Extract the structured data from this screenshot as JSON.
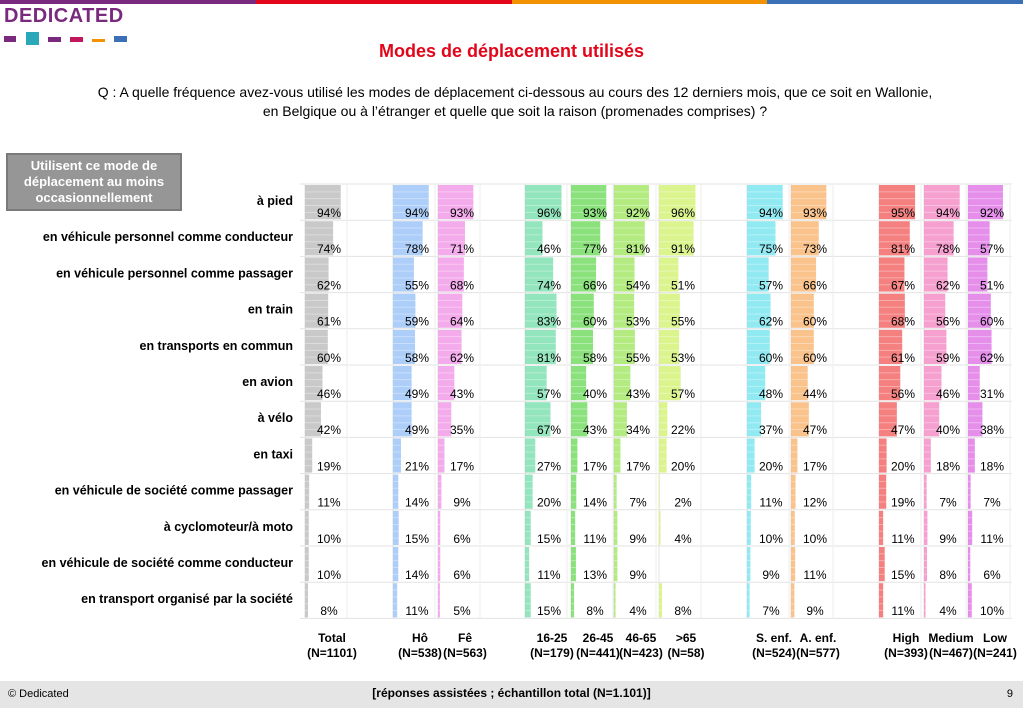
{
  "brand": {
    "logo_text": "DEDICATED"
  },
  "header": {
    "title": "Modes de déplacement utilisés",
    "question_line1": "Q : A quelle fréquence avez-vous utilisé les modes de déplacement ci-dessous au cours des 12 derniers mois, que ce soit en Wallonie,",
    "question_line2": "en Belgique ou à l’étranger et quelle que soit la raison (promenades comprises) ?"
  },
  "legend_box": {
    "text": "Utilisent ce mode de déplacement au moins occasionnellement"
  },
  "colors": {
    "total": "#bfbfbf",
    "gender": "#9fc5f8",
    "gender_f": "#f29ce8",
    "age1": "#7fe0b0",
    "age2": "#77dd66",
    "age3": "#a6e86a",
    "age4": "#d5f27a",
    "kids": "#7ee6f0",
    "nokids": "#f9b878",
    "high": "#f26a6a",
    "medium": "#f48fc8",
    "low": "#e07be8"
  },
  "chart_data": {
    "type": "bar",
    "orientation": "horizontal-small-multiples",
    "xlim": [
      0,
      100
    ],
    "categories": [
      "à pied",
      "en véhicule personnel comme conducteur",
      "en véhicule personnel comme passager",
      "en train",
      "en transports en commun",
      "en avion",
      "à vélo",
      "en taxi",
      "en véhicule de société comme passager",
      "à cyclomoteur/à moto",
      "en véhicule de société comme conducteur",
      "en transport organisé par la société"
    ],
    "series": [
      {
        "name": "Total",
        "n": "(N=1101)",
        "color_key": "total",
        "values": [
          94,
          74,
          62,
          61,
          60,
          46,
          42,
          19,
          11,
          10,
          10,
          8
        ],
        "labels": [
          "94%",
          "74%",
          "62%",
          "61%",
          "60%",
          "46%",
          "42%",
          "19%",
          "11%",
          "10%",
          "10%",
          "8%"
        ]
      },
      {
        "name": "Hô",
        "n": "(N=538)",
        "color_key": "gender",
        "values": [
          94,
          78,
          55,
          59,
          58,
          49,
          49,
          21,
          14,
          15,
          14,
          11
        ],
        "labels": [
          "94%",
          "78%",
          "55%",
          "59%",
          "58%",
          "49%",
          "49%",
          "21%",
          "14%",
          "15%",
          "14%",
          "11%"
        ]
      },
      {
        "name": "Fê",
        "n": "(N=563)",
        "color_key": "gender_f",
        "values": [
          93,
          71,
          68,
          64,
          62,
          43,
          35,
          17,
          9,
          6,
          6,
          5
        ],
        "labels": [
          "93%",
          "71%",
          "68%",
          "64%",
          "62%",
          "43%",
          "35%",
          "17%",
          "9%",
          "6%",
          "6%",
          "5%"
        ]
      },
      {
        "name": "16-25",
        "n": "(N=179)",
        "color_key": "age1",
        "values": [
          96,
          46,
          74,
          83,
          81,
          57,
          67,
          27,
          20,
          15,
          11,
          15
        ],
        "labels": [
          "96%",
          "46%",
          "74%",
          "83%",
          "81%",
          "57%",
          "67%",
          "27%",
          "20%",
          "15%",
          "11%",
          "15%"
        ]
      },
      {
        "name": "26-45",
        "n": "(N=441)",
        "color_key": "age2",
        "values": [
          93,
          77,
          66,
          60,
          58,
          40,
          43,
          17,
          14,
          11,
          13,
          8
        ],
        "labels": [
          "93%",
          "77%",
          "66%",
          "60%",
          "58%",
          "40%",
          "43%",
          "17%",
          "14%",
          "11%",
          "13%",
          "8%"
        ]
      },
      {
        "name": "46-65",
        "n": "(N=423)",
        "color_key": "age3",
        "values": [
          92,
          81,
          54,
          53,
          55,
          43,
          34,
          17,
          7,
          9,
          9,
          4
        ],
        "labels": [
          "92%",
          "81%",
          "54%",
          "53%",
          "55%",
          "43%",
          "34%",
          "17%",
          "7%",
          "9%",
          "9%",
          "4%"
        ]
      },
      {
        "name": ">65",
        "n": "(N=58)",
        "color_key": "age4",
        "values": [
          96,
          91,
          51,
          55,
          53,
          57,
          22,
          20,
          2,
          4,
          null,
          8
        ],
        "labels": [
          "96%",
          "91%",
          "51%",
          "55%",
          "53%",
          "57%",
          "22%",
          "20%",
          "2%",
          "4%",
          "",
          "8%"
        ]
      },
      {
        "name": "S. enf.",
        "n": "(N=524)",
        "color_key": "kids",
        "values": [
          94,
          75,
          57,
          62,
          60,
          48,
          37,
          20,
          11,
          10,
          9,
          7
        ],
        "labels": [
          "94%",
          "75%",
          "57%",
          "62%",
          "60%",
          "48%",
          "37%",
          "20%",
          "11%",
          "10%",
          "9%",
          "7%"
        ]
      },
      {
        "name": "A. enf.",
        "n": "(N=577)",
        "color_key": "nokids",
        "values": [
          93,
          73,
          66,
          60,
          60,
          44,
          47,
          17,
          12,
          10,
          11,
          9
        ],
        "labels": [
          "93%",
          "73%",
          "66%",
          "60%",
          "60%",
          "44%",
          "47%",
          "17%",
          "12%",
          "10%",
          "11%",
          "9%"
        ]
      },
      {
        "name": "High",
        "n": "(N=393)",
        "color_key": "high",
        "values": [
          95,
          81,
          67,
          68,
          61,
          56,
          47,
          20,
          19,
          11,
          15,
          11
        ],
        "labels": [
          "95%",
          "81%",
          "67%",
          "68%",
          "61%",
          "56%",
          "47%",
          "20%",
          "19%",
          "11%",
          "15%",
          "11%"
        ]
      },
      {
        "name": "Medium",
        "n": "(N=467)",
        "color_key": "medium",
        "values": [
          94,
          78,
          62,
          56,
          59,
          46,
          40,
          18,
          7,
          9,
          8,
          4
        ],
        "labels": [
          "94%",
          "78%",
          "62%",
          "56%",
          "59%",
          "46%",
          "40%",
          "18%",
          "7%",
          "9%",
          "8%",
          "4%"
        ]
      },
      {
        "name": "Low",
        "n": "(N=241)",
        "color_key": "low",
        "values": [
          92,
          57,
          51,
          60,
          62,
          31,
          38,
          18,
          7,
          11,
          6,
          10
        ],
        "labels": [
          "92%",
          "57%",
          "51%",
          "60%",
          "62%",
          "31%",
          "38%",
          "18%",
          "7%",
          "11%",
          "6%",
          "10%"
        ]
      }
    ]
  },
  "footer": {
    "copyright": "© Dedicated",
    "note": "[réponses assistées ; échantillon total (N=1.101)]",
    "page_number": "9"
  }
}
